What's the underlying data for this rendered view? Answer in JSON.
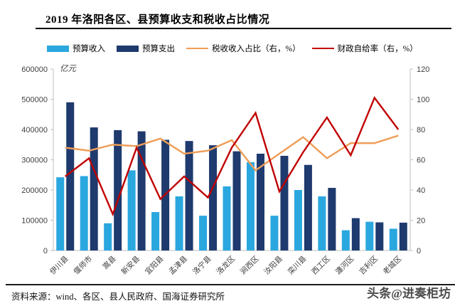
{
  "header": {
    "title": "2019 年洛阳各区、县预算收支和税收占比情况"
  },
  "chart_data": {
    "type": "bar",
    "subtype": "grouped-bars-with-lines",
    "unit_label": "亿元",
    "categories": [
      "伊川县",
      "偃师市",
      "嵩县",
      "新安县",
      "宜阳县",
      "孟津县",
      "洛宁县",
      "洛龙区",
      "涧西区",
      "汝阳县",
      "栾川县",
      "西工区",
      "瀍河区",
      "吉利区",
      "老城区"
    ],
    "series": [
      {
        "name": "预算收入",
        "kind": "bar",
        "axis": "left",
        "color": "#2BA7DF",
        "values": [
          242000,
          246000,
          90000,
          265000,
          127000,
          179000,
          115000,
          212000,
          292000,
          115000,
          200000,
          179000,
          67000,
          95000,
          72000
        ]
      },
      {
        "name": "预算支出",
        "kind": "bar",
        "axis": "left",
        "color": "#1E3A6E",
        "values": [
          490000,
          407000,
          398000,
          394000,
          366000,
          362000,
          348000,
          328000,
          320000,
          313000,
          283000,
          207000,
          107000,
          93000,
          92000
        ]
      },
      {
        "name": "税收收入占比（右，%）",
        "kind": "line",
        "axis": "right",
        "color": "#EE9D57",
        "values": [
          68,
          66,
          70,
          69,
          74,
          64,
          66,
          73,
          53,
          64,
          75,
          61,
          71,
          71,
          76
        ]
      },
      {
        "name": "财政自给率（右，%）",
        "kind": "line",
        "axis": "right",
        "color": "#C00000",
        "values": [
          49,
          61,
          24,
          68,
          34,
          49,
          35,
          68,
          91,
          39,
          65,
          88,
          63,
          101,
          80
        ]
      }
    ],
    "left_axis": {
      "min": 0,
      "max": 600000,
      "step": 100000,
      "ticks": [
        "0",
        "100000",
        "200000",
        "300000",
        "400000",
        "500000",
        "600000"
      ]
    },
    "right_axis": {
      "min": 0,
      "max": 120,
      "step": 20,
      "ticks": [
        "0",
        "20",
        "40",
        "60",
        "80",
        "100",
        "120"
      ]
    },
    "legend_position": "top",
    "grid": false,
    "axis_color": "#bfbfbf",
    "label_color": "#404040"
  },
  "footer": {
    "source": "资料来源：wind、各区、县人民政府、国海证券研究所",
    "watermark": "头条@进奏柜坊"
  }
}
